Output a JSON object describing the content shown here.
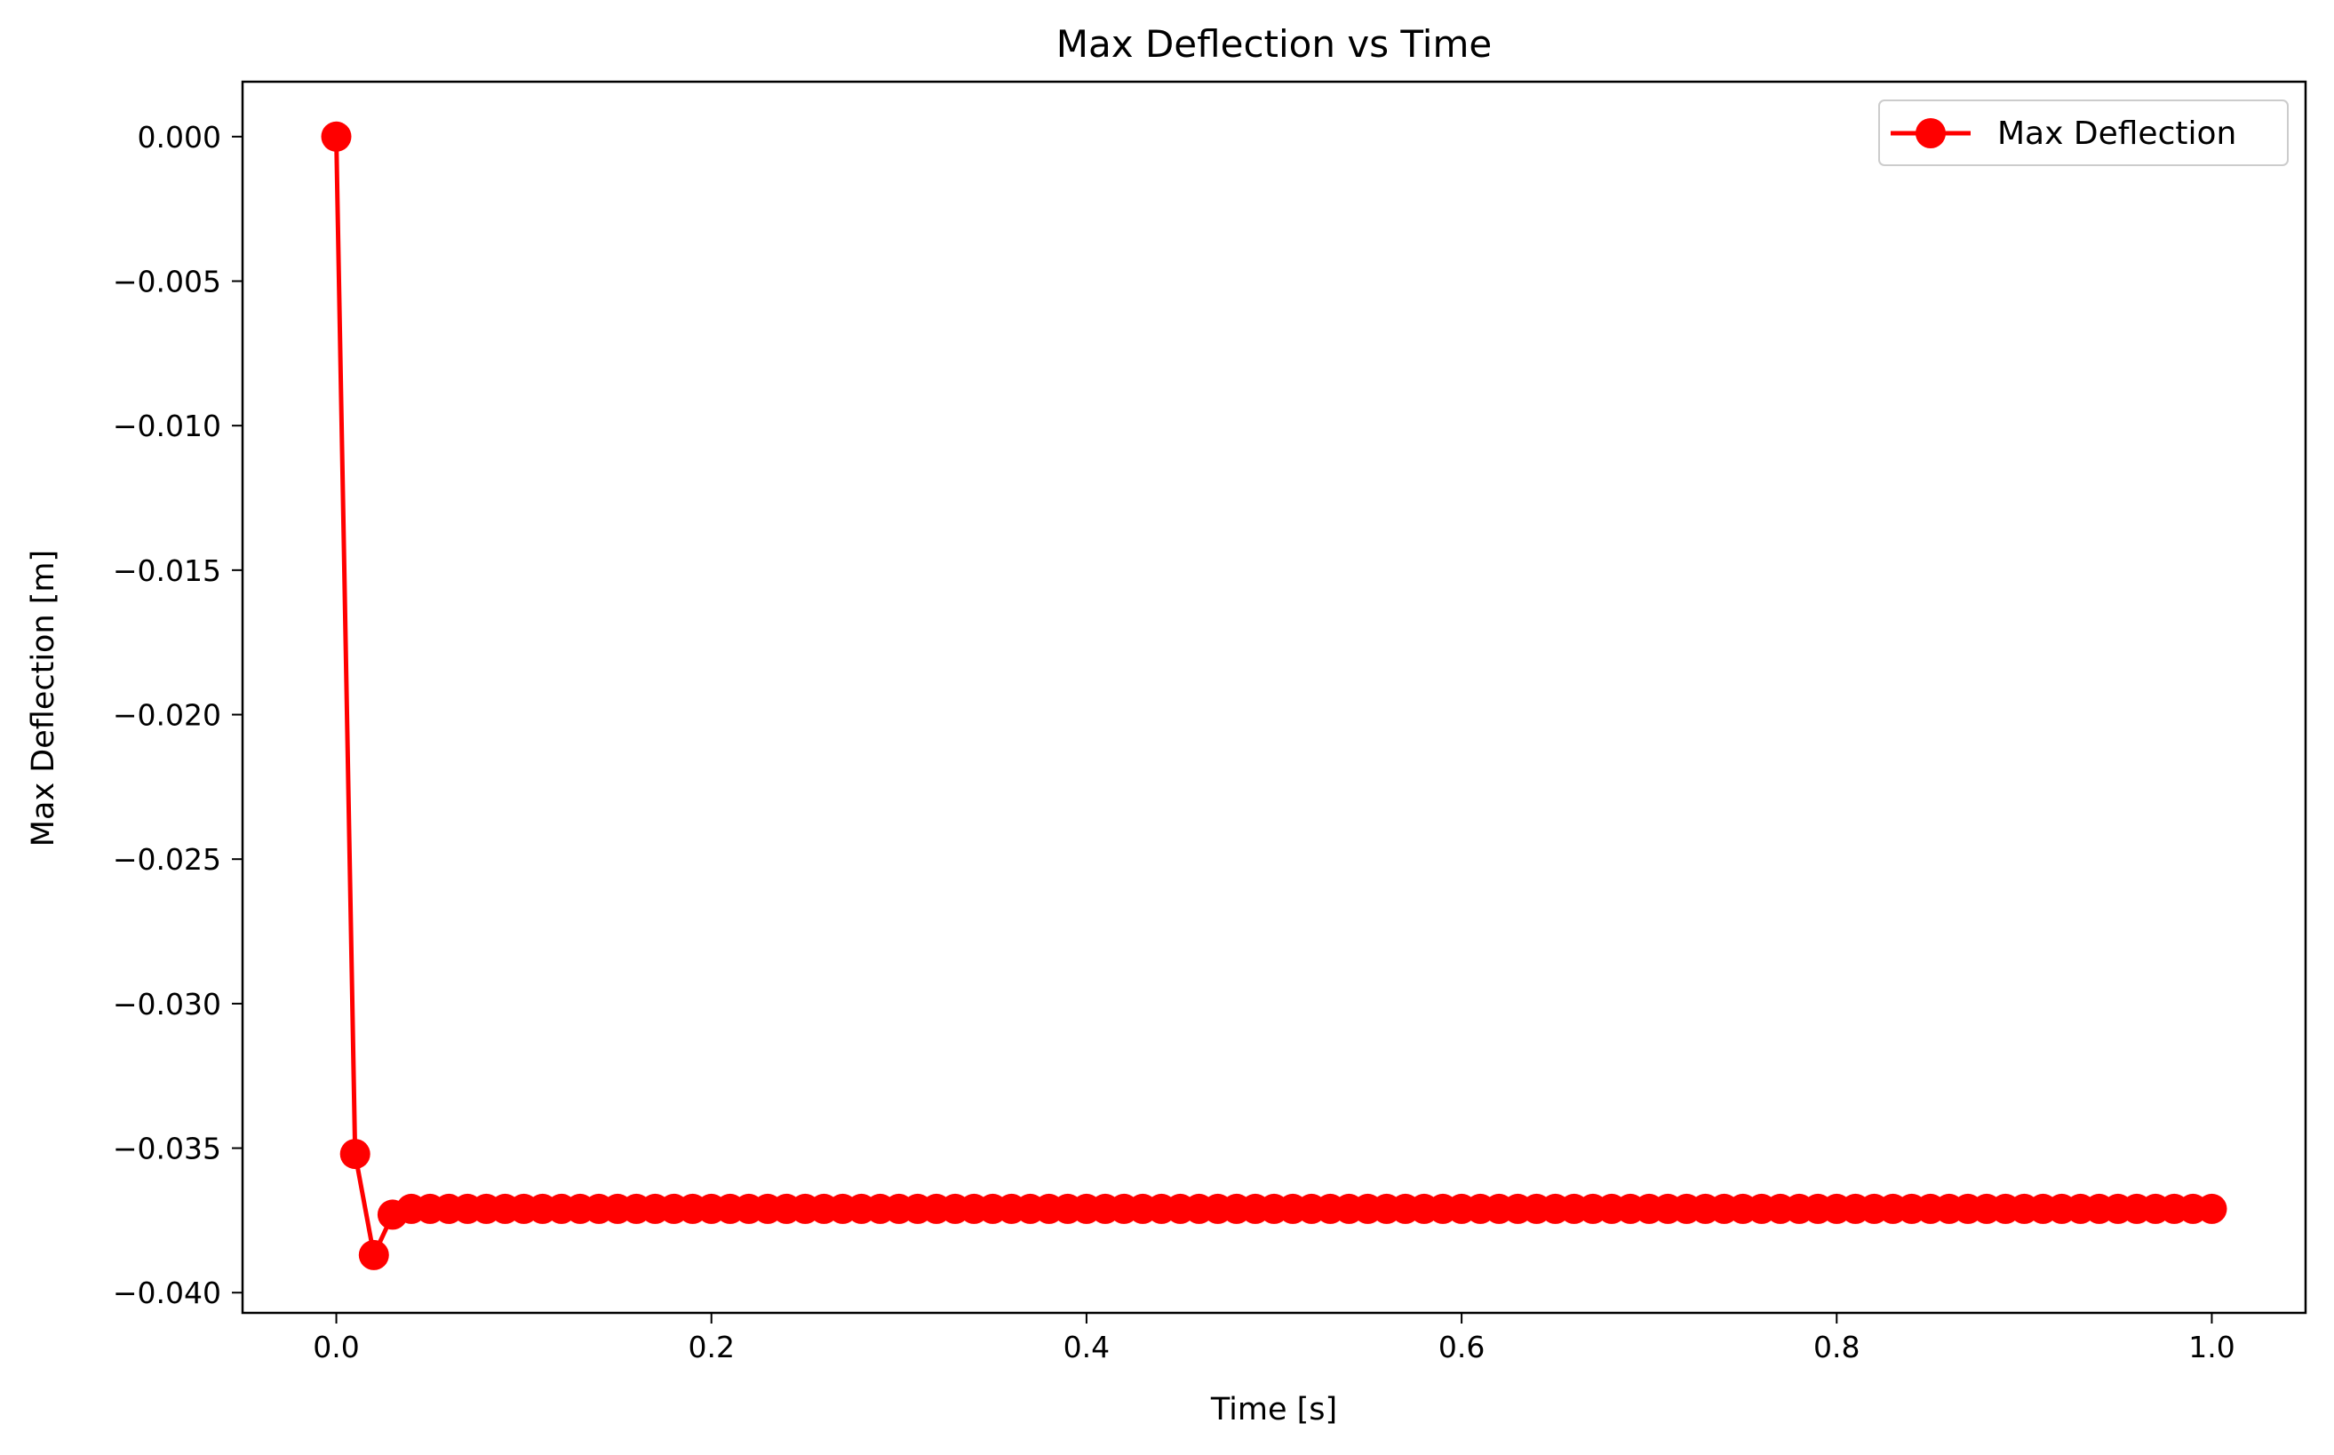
{
  "chart_data": {
    "type": "line",
    "title": "Max Deflection vs Time",
    "xlabel": "Time [s]",
    "ylabel": "Max Deflection [m]",
    "xlim": [
      -0.05,
      1.05
    ],
    "ylim": [
      -0.0407,
      0.0019
    ],
    "x_ticks": [
      0.0,
      0.2,
      0.4,
      0.6,
      0.8,
      1.0
    ],
    "x_tick_labels": [
      "0.0",
      "0.2",
      "0.4",
      "0.6",
      "0.8",
      "1.0"
    ],
    "y_ticks": [
      0.0,
      -0.005,
      -0.01,
      -0.015,
      -0.02,
      -0.025,
      -0.03,
      -0.035,
      -0.04
    ],
    "y_tick_labels": [
      "0.000",
      "−0.005",
      "−0.010",
      "−0.015",
      "−0.020",
      "−0.025",
      "−0.030",
      "−0.035",
      "−0.040"
    ],
    "grid": false,
    "legend_position": "top-right",
    "series": [
      {
        "name": "Max Deflection",
        "color": "#ff0000",
        "marker": "circle",
        "x_start": 0.0,
        "x_step": 0.01,
        "initial_values": [
          0.0,
          -0.0352,
          -0.0387,
          -0.0373
        ],
        "steady_value": -0.0371,
        "x_end": 1.0
      }
    ]
  }
}
